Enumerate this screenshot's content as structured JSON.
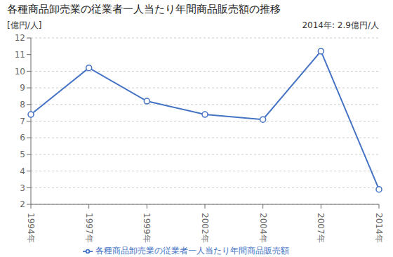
{
  "chart_data": {
    "type": "line",
    "title": "各種商品卸売業の従業者一人当たり年間商品販売額の推移",
    "y_label": "[億円/人]",
    "annotation": "2014年: 2.9億円/人",
    "categories": [
      "1994年",
      "1997年",
      "1999年",
      "2002年",
      "2004年",
      "2007年",
      "2014年"
    ],
    "series": [
      {
        "name": "各種商品卸売業の従業者一人当たり年間商品販売額",
        "color": "#4472C4",
        "marker": "circle",
        "values": [
          7.4,
          10.2,
          8.2,
          7.4,
          7.1,
          11.2,
          2.9
        ]
      }
    ],
    "ylim": [
      2,
      12
    ],
    "yticks": [
      2,
      3,
      4,
      5,
      6,
      7,
      8,
      9,
      10,
      11,
      12
    ],
    "grid": true,
    "legend": "bottom"
  }
}
